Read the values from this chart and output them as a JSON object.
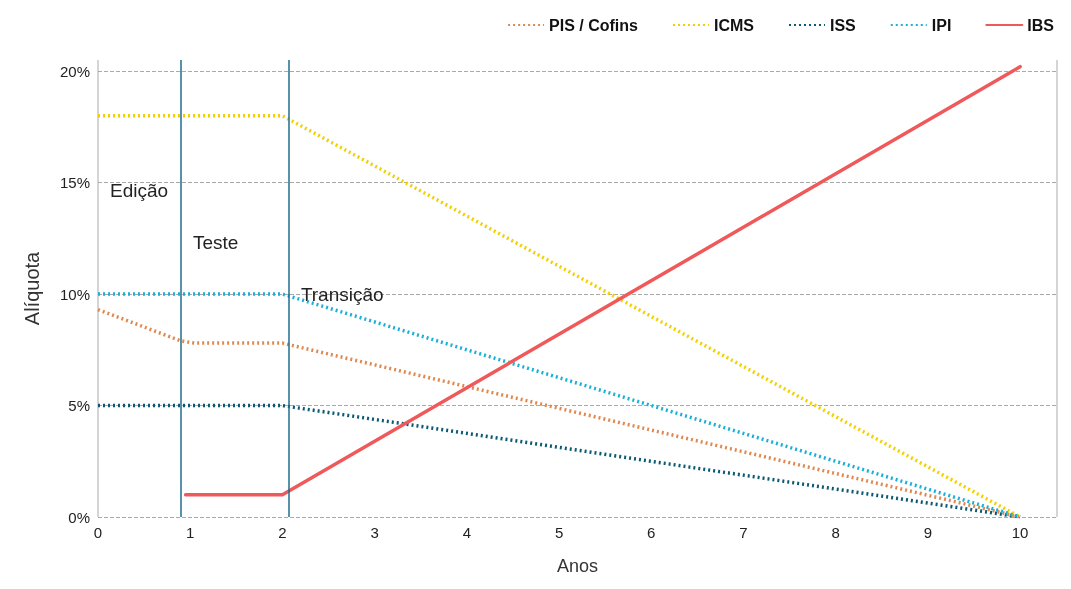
{
  "chart_data": {
    "type": "line",
    "xlabel": "Anos",
    "ylabel": "Alíquota",
    "xlim": [
      0,
      10.4
    ],
    "xticks": [
      0,
      1,
      2,
      3,
      4,
      5,
      6,
      7,
      8,
      9,
      10
    ],
    "ylim": [
      0,
      20.5
    ],
    "yticks": [
      {
        "value": 0,
        "label": "0%"
      },
      {
        "value": 5,
        "label": "5%"
      },
      {
        "value": 10,
        "label": "10%"
      },
      {
        "value": 15,
        "label": "15%"
      },
      {
        "value": 20,
        "label": "20%"
      }
    ],
    "grid": "y",
    "legend": "top right",
    "marker": "none",
    "series": [
      {
        "name": "PIS / Cofins",
        "color": "#e0884f",
        "line_style": "dotted",
        "x": [
          0,
          0.9,
          1.05,
          2,
          10
        ],
        "values": [
          9.3,
          7.9,
          7.8,
          7.8,
          0
        ]
      },
      {
        "name": "ICMS",
        "color": "#f2d000",
        "line_style": "dotted",
        "x": [
          0,
          2,
          10
        ],
        "values": [
          18,
          18,
          0
        ]
      },
      {
        "name": "ISS",
        "color": "#0b5a73",
        "line_style": "dotted",
        "x": [
          0,
          2,
          10
        ],
        "values": [
          5,
          5,
          0
        ]
      },
      {
        "name": "IPI",
        "color": "#1ab0d8",
        "line_style": "dotted",
        "x": [
          0,
          2,
          10
        ],
        "values": [
          10,
          10,
          0
        ]
      },
      {
        "name": "IBS",
        "color": "#f0595a",
        "line_style": "solid",
        "x": [
          0.95,
          2,
          10
        ],
        "values": [
          1,
          1,
          20.2
        ]
      }
    ],
    "ref_lines": [
      {
        "axis": "x",
        "value": 0.9,
        "color": "#1f6e8c"
      },
      {
        "axis": "x",
        "value": 2.07,
        "color": "#1f6e8c"
      }
    ],
    "annotations": [
      "Edição",
      "Teste",
      "Transição"
    ]
  }
}
